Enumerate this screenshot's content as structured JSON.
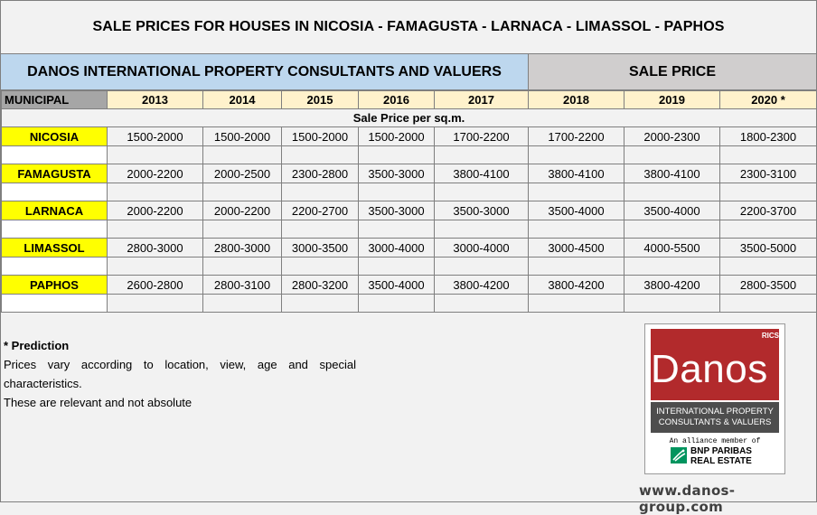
{
  "title": "SALE PRICES FOR HOUSES IN NICOSIA - FAMAGUSTA - LARNACA - LIMASSOL - PAPHOS",
  "header_left": "DANOS INTERNATIONAL PROPERTY CONSULTANTS AND VALUERS",
  "header_right": "SALE PRICE",
  "columns": {
    "municipal": "MUNICIPAL",
    "years": [
      "2013",
      "2014",
      "2015",
      "2016",
      "2017",
      "2018",
      "2019",
      "2020 *"
    ]
  },
  "subheader": "Sale Price per sq.m.",
  "rows": [
    {
      "city": "NICOSIA",
      "values": [
        "1500-2000",
        "1500-2000",
        "1500-2000",
        "1500-2000",
        "1700-2200",
        "1700-2200",
        "2000-2300",
        "1800-2300"
      ]
    },
    {
      "city": "FAMAGUSTA",
      "values": [
        "2000-2200",
        "2000-2500",
        "2300-2800",
        "3500-3000",
        "3800-4100",
        "3800-4100",
        "3800-4100",
        "2300-3100"
      ]
    },
    {
      "city": "LARNACA",
      "values": [
        "2000-2200",
        "2000-2200",
        "2200-2700",
        "3500-3000",
        "3500-3000",
        "3500-4000",
        "3500-4000",
        "2200-3700"
      ]
    },
    {
      "city": "LIMASSOL",
      "values": [
        "2800-3000",
        "2800-3000",
        "3000-3500",
        "3000-4000",
        "3000-4000",
        "3000-4500",
        "4000-5500",
        "3500-5000"
      ]
    },
    {
      "city": "PAPHOS",
      "values": [
        "2600-2800",
        "2800-3100",
        "2800-3200",
        "3500-4000",
        "3800-4200",
        "3800-4200",
        "3800-4200",
        "2800-3500"
      ]
    }
  ],
  "notes": {
    "prediction": "* Prediction",
    "line1": "Prices vary according to location, view, age and special characteristics.",
    "line2": "These are relevant and not absolute"
  },
  "logo": {
    "rics": "RICS",
    "brand": "Danos",
    "tagline1": "INTERNATIONAL PROPERTY",
    "tagline2": "CONSULTANTS & VALUERS",
    "alliance": "An alliance member of",
    "bnp1": "BNP PARIBAS",
    "bnp2": "REAL ESTATE",
    "colors": {
      "red": "#b22a2c",
      "grey": "#4d4d4d",
      "green": "#00945e"
    }
  },
  "website": "www.danos-group.com"
}
